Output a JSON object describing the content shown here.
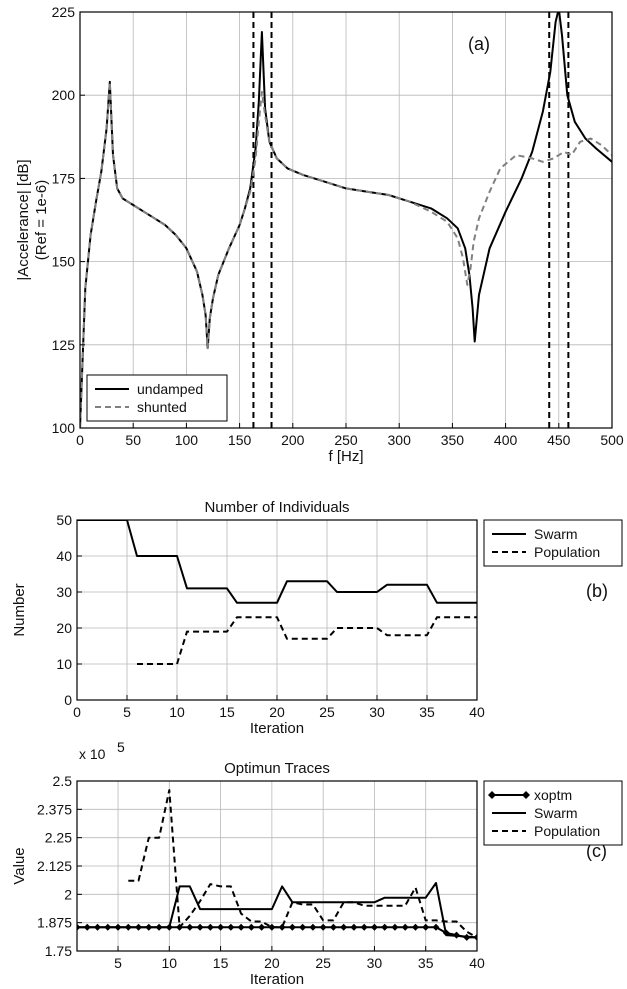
{
  "chart_data": [
    {
      "type": "line",
      "panel_label": "(a)",
      "title": "",
      "xlabel": "f [Hz]",
      "ylabel": "|Accelerance| [dB]",
      "ylabel2": "(Ref = 1e-6)",
      "xlim": [
        0,
        500
      ],
      "ylim": [
        100,
        225
      ],
      "xticks": [
        0,
        50,
        100,
        150,
        200,
        250,
        300,
        350,
        400,
        450,
        500
      ],
      "yticks": [
        100,
        125,
        150,
        175,
        200,
        225
      ],
      "xtick_labels": [
        "0",
        "50",
        "100",
        "150",
        "200",
        "250",
        "300",
        "350",
        "400",
        "450",
        "500"
      ],
      "ytick_labels": [
        "100",
        "125",
        "150",
        "175",
        "200",
        "225"
      ],
      "grid": true,
      "legend_position": "bottom-left",
      "vlines": [
        163,
        180,
        441,
        459
      ],
      "series": [
        {
          "name": "undamped",
          "style": "solid",
          "color": "#000000",
          "x": [
            0,
            5,
            10,
            15,
            20,
            25,
            28,
            31,
            35,
            40,
            50,
            60,
            70,
            80,
            90,
            100,
            110,
            115,
            118,
            120,
            122,
            125,
            130,
            140,
            150,
            155,
            160,
            165,
            168,
            171,
            174,
            178,
            185,
            195,
            210,
            230,
            250,
            270,
            290,
            310,
            330,
            345,
            355,
            362,
            366,
            369,
            371,
            375,
            385,
            400,
            415,
            425,
            435,
            442,
            447,
            450,
            453,
            458,
            465,
            475,
            485,
            500
          ],
          "y": [
            100,
            142,
            158,
            168,
            177,
            190,
            204,
            182,
            172,
            169,
            167,
            165,
            163,
            161,
            158,
            154,
            147,
            140,
            134,
            124,
            133,
            139,
            146,
            154,
            161,
            166,
            172,
            184,
            198,
            219,
            196,
            186,
            181,
            178,
            176,
            174,
            172,
            171,
            170,
            168,
            166,
            163,
            160,
            154,
            146,
            136,
            126,
            140,
            154,
            165,
            175,
            183,
            195,
            207,
            222,
            226,
            218,
            200,
            192,
            187,
            184,
            180
          ]
        },
        {
          "name": "shunted",
          "style": "dashed",
          "color": "#808080",
          "x": [
            0,
            5,
            10,
            15,
            20,
            25,
            28,
            31,
            35,
            40,
            50,
            60,
            70,
            80,
            90,
            100,
            110,
            115,
            118,
            120,
            122,
            125,
            130,
            140,
            150,
            155,
            160,
            165,
            168,
            171,
            174,
            178,
            185,
            195,
            210,
            230,
            250,
            270,
            290,
            310,
            330,
            345,
            355,
            360,
            364,
            367,
            370,
            375,
            385,
            395,
            410,
            425,
            435,
            445,
            455,
            462,
            470,
            480,
            490,
            500
          ],
          "y": [
            100,
            142,
            158,
            168,
            177,
            190,
            204,
            182,
            172,
            169,
            167,
            165,
            163,
            161,
            158,
            154,
            147,
            140,
            134,
            124,
            133,
            139,
            146,
            154,
            161,
            166,
            171,
            181,
            192,
            201,
            194,
            186,
            181,
            178,
            176,
            174,
            172,
            171,
            170,
            168,
            165,
            162,
            157,
            151,
            143,
            148,
            156,
            163,
            171,
            178,
            182,
            181,
            180,
            181,
            183,
            182,
            186,
            187,
            185,
            182
          ]
        }
      ]
    },
    {
      "type": "line",
      "panel_label": "(b)",
      "title": "Number of Individuals",
      "xlabel": "Iteration",
      "ylabel": "Number",
      "xlim": [
        0,
        40
      ],
      "ylim": [
        0,
        50
      ],
      "xticks": [
        0,
        5,
        10,
        15,
        20,
        25,
        30,
        35,
        40
      ],
      "yticks": [
        0,
        10,
        20,
        30,
        40,
        50
      ],
      "xtick_labels": [
        "0",
        "5",
        "10",
        "15",
        "20",
        "25",
        "30",
        "35",
        "40"
      ],
      "ytick_labels": [
        "0",
        "10",
        "20",
        "30",
        "40",
        "50"
      ],
      "grid": true,
      "legend_position": "outside-right",
      "series": [
        {
          "name": "Swarm",
          "style": "solid",
          "color": "#000000",
          "x": [
            0,
            5,
            6,
            10,
            11,
            15,
            16,
            20,
            21,
            25,
            26,
            30,
            31,
            35,
            36,
            40
          ],
          "y": [
            50,
            50,
            40,
            40,
            31,
            31,
            27,
            27,
            33,
            33,
            30,
            30,
            32,
            32,
            27,
            27
          ]
        },
        {
          "name": "Population",
          "style": "dashed",
          "color": "#000000",
          "x": [
            6,
            10,
            11,
            15,
            16,
            20,
            21,
            25,
            26,
            30,
            31,
            35,
            36,
            40
          ],
          "y": [
            10,
            10,
            19,
            19,
            23,
            23,
            17,
            17,
            20,
            20,
            18,
            18,
            23,
            23
          ]
        }
      ]
    },
    {
      "type": "line",
      "panel_label": "(c)",
      "title": "Optimun Traces",
      "xlabel": "Iteration",
      "ylabel": "Value",
      "exponent_label": "x 10",
      "exponent_power": "5",
      "xlim": [
        1,
        40
      ],
      "ylim": [
        1.75,
        2.5
      ],
      "xticks": [
        5,
        10,
        15,
        20,
        25,
        30,
        35,
        40
      ],
      "yticks": [
        1.75,
        1.875,
        2,
        2.125,
        2.25,
        2.375,
        2.5
      ],
      "xtick_labels": [
        "5",
        "10",
        "15",
        "20",
        "25",
        "30",
        "35",
        "40"
      ],
      "ytick_labels": [
        "1.75",
        "1.875",
        "2",
        "2.125",
        "2.25",
        "2.375",
        "2.5"
      ],
      "grid": true,
      "legend_position": "outside-right",
      "series": [
        {
          "name": "xoptm",
          "style": "solid-diamond",
          "color": "#000000",
          "x": [
            1,
            2,
            3,
            4,
            5,
            6,
            7,
            8,
            9,
            10,
            11,
            12,
            13,
            14,
            15,
            16,
            17,
            18,
            19,
            20,
            21,
            22,
            23,
            24,
            25,
            26,
            27,
            28,
            29,
            30,
            31,
            32,
            33,
            34,
            35,
            36,
            37,
            38,
            39,
            40
          ],
          "y": [
            1.855,
            1.855,
            1.855,
            1.855,
            1.855,
            1.855,
            1.855,
            1.855,
            1.855,
            1.855,
            1.855,
            1.855,
            1.855,
            1.855,
            1.855,
            1.855,
            1.855,
            1.855,
            1.855,
            1.855,
            1.855,
            1.855,
            1.855,
            1.855,
            1.855,
            1.855,
            1.855,
            1.855,
            1.855,
            1.855,
            1.855,
            1.855,
            1.855,
            1.855,
            1.855,
            1.855,
            1.83,
            1.82,
            1.81,
            1.81
          ]
        },
        {
          "name": "Swarm",
          "style": "solid",
          "color": "#000000",
          "x": [
            1,
            10,
            11,
            12,
            13,
            20,
            21,
            22,
            30,
            31,
            35,
            36,
            37,
            40
          ],
          "y": [
            1.855,
            1.855,
            2.035,
            2.035,
            1.935,
            1.935,
            2.035,
            1.965,
            1.965,
            1.985,
            1.985,
            2.05,
            1.82,
            1.81
          ]
        },
        {
          "name": "Population",
          "style": "dashed",
          "color": "#000000",
          "x": [
            6,
            7,
            8,
            9,
            10,
            11,
            12,
            13,
            14,
            15,
            16,
            17,
            18,
            19,
            20,
            21,
            22,
            23,
            24,
            25,
            26,
            27,
            28,
            29,
            30,
            31,
            32,
            33,
            34,
            35,
            36,
            37,
            38,
            39,
            40
          ],
          "y": [
            2.06,
            2.06,
            2.25,
            2.25,
            2.46,
            1.855,
            1.905,
            1.97,
            2.045,
            2.035,
            2.035,
            1.915,
            1.88,
            1.88,
            1.855,
            1.855,
            1.965,
            1.955,
            1.955,
            1.885,
            1.885,
            1.965,
            1.965,
            1.95,
            1.95,
            1.95,
            1.95,
            1.95,
            2.03,
            1.885,
            1.885,
            1.88,
            1.88,
            1.835,
            1.81
          ]
        }
      ]
    }
  ]
}
